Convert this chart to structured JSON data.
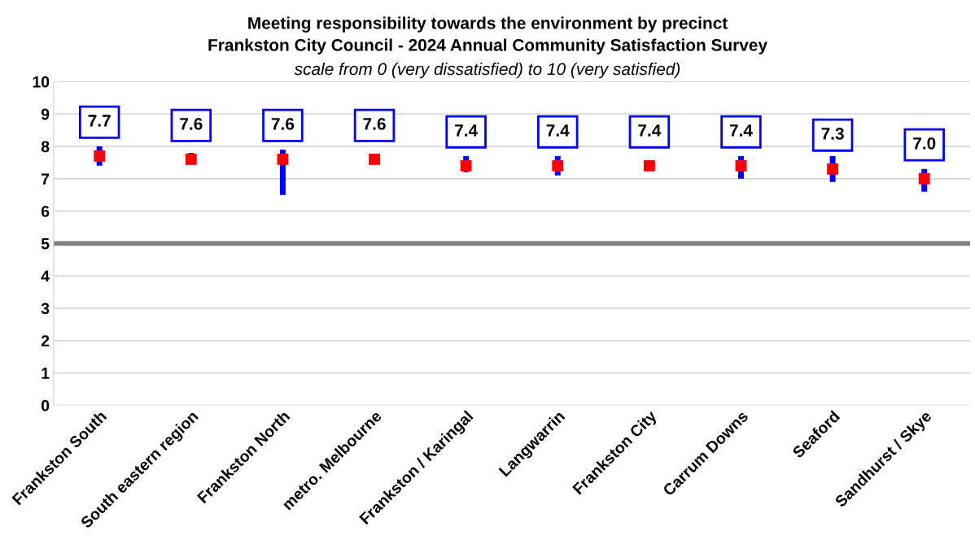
{
  "chart_data": {
    "type": "scatter",
    "title": "Meeting responsibility towards the environment by precinct\nFrankston City Council - 2024 Annual Community Satisfaction Survey",
    "subtitle": "scale from 0 (very dissatisfied) to 10 (very satisfied)",
    "categories": [
      "Frankston South",
      "South eastern region",
      "Frankston North",
      "metro. Melbourne",
      "Frankston / Karingal",
      "Langwarrin",
      "Frankston City",
      "Carrum Downs",
      "Seaford",
      "Sandhurst / Skye"
    ],
    "series": [
      {
        "color": "#ff0000",
        "values": [
          7.7,
          7.6,
          7.6,
          7.6,
          7.4,
          7.4,
          7.4,
          7.4,
          7.3,
          7.0
        ],
        "errors": [
          [
            7.4,
            8.0
          ],
          [
            7.5,
            7.8
          ],
          [
            6.5,
            7.9
          ],
          null,
          [
            7.2,
            7.7
          ],
          [
            7.1,
            7.7
          ],
          null,
          [
            7.0,
            7.7
          ],
          [
            6.9,
            7.7
          ],
          [
            6.6,
            7.3
          ]
        ],
        "value_labels": [
          "7.7",
          "7.6",
          "7.6",
          "7.6",
          "7.4",
          "7.4",
          "7.4",
          "7.4",
          "7.3",
          "7.0"
        ]
      }
    ],
    "marker": "square",
    "ylim": [
      0,
      10
    ],
    "yticks": [
      0,
      1,
      2,
      3,
      4,
      5,
      6,
      7,
      8,
      9,
      10
    ],
    "grid": "y",
    "legend": false,
    "ref_lines": [
      {
        "axis": "y",
        "value": 5,
        "color": "#808080"
      }
    ]
  }
}
